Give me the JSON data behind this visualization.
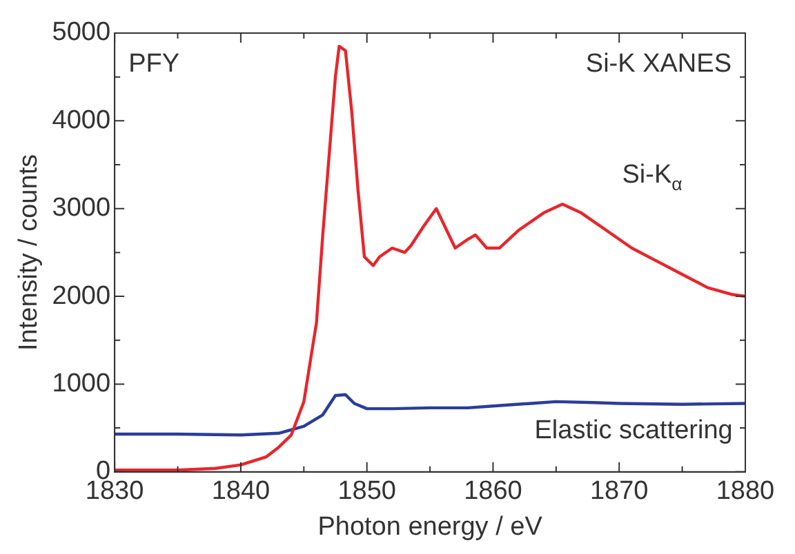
{
  "chart_data": {
    "type": "line",
    "xlabel": "Photon energy / eV",
    "ylabel": "Intensity / counts",
    "annotations": [
      "PFY",
      "Si-K XANES"
    ],
    "xlim": [
      1830,
      1880
    ],
    "xticks": [
      1830,
      {
        "value": 1835,
        "label": null
      },
      1840,
      {
        "value": 1845,
        "label": null
      },
      1850,
      {
        "value": 1855,
        "label": null
      },
      1860,
      {
        "value": 1865,
        "label": null
      },
      1870,
      {
        "value": 1875,
        "label": null
      },
      1880
    ],
    "ylim": [
      0,
      5000
    ],
    "yticks": [
      0,
      {
        "value": 500,
        "label": null
      },
      1000,
      {
        "value": 1500,
        "label": null
      },
      2000,
      {
        "value": 2500,
        "label": null
      },
      3000,
      {
        "value": 3500,
        "label": null
      },
      4000,
      {
        "value": 4500,
        "label": null
      },
      5000
    ],
    "grid": false,
    "legend": false,
    "marker": "none",
    "line_style": "solid",
    "series": [
      {
        "name": "Si-K$_{α}$",
        "color": "#e8262b",
        "x": [
          1830,
          1835,
          1838,
          1840,
          1842,
          1843,
          1844,
          1845,
          1846,
          1846.5,
          1847,
          1847.5,
          1847.8,
          1848.3,
          1848.8,
          1849.3,
          1849.8,
          1850.5,
          1851,
          1852,
          1853,
          1853.5,
          1854.5,
          1855.5,
          1856.5,
          1857,
          1858,
          1858.6,
          1859.5,
          1860.5,
          1862,
          1864,
          1865.5,
          1867,
          1869,
          1871,
          1873,
          1875,
          1877,
          1879,
          1880
        ],
        "values": [
          20,
          20,
          40,
          80,
          170,
          280,
          420,
          800,
          1700,
          2700,
          3600,
          4500,
          4850,
          4800,
          4100,
          3200,
          2450,
          2350,
          2450,
          2550,
          2500,
          2580,
          2800,
          3000,
          2700,
          2550,
          2650,
          2700,
          2550,
          2550,
          2750,
          2950,
          3050,
          2950,
          2750,
          2550,
          2400,
          2250,
          2100,
          2020,
          2000
        ]
      },
      {
        "name": "Elastic scattering",
        "color": "#2b3d9a",
        "x": [
          1830,
          1835,
          1840,
          1843,
          1845,
          1846.5,
          1847.5,
          1848.3,
          1849,
          1850,
          1852,
          1855,
          1858,
          1860,
          1863,
          1865,
          1868,
          1870,
          1875,
          1880
        ],
        "values": [
          430,
          430,
          420,
          440,
          520,
          650,
          870,
          880,
          780,
          720,
          720,
          730,
          730,
          750,
          780,
          800,
          790,
          780,
          770,
          780
        ]
      }
    ]
  }
}
